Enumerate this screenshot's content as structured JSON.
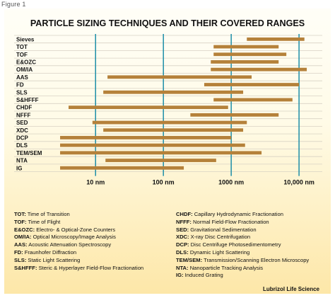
{
  "figure_label": "Figure 1",
  "source_note": "Lubrizol Life Science",
  "colors": {
    "bar": "#b5813a",
    "gridline": "#1c8ea8",
    "row_line": "#d8d2c4",
    "title": "#111111"
  },
  "chart_data": {
    "type": "bar",
    "orientation": "horizontal-range",
    "title": "PARTICLE SIZING TECHNIQUES AND THEIR COVERED RANGES",
    "x_scale": "log",
    "x_unit": "nm",
    "xlim": [
      1.9,
      20000
    ],
    "ticks": [
      {
        "value": 10,
        "label": "10 nm"
      },
      {
        "value": 100,
        "label": "100 nm"
      },
      {
        "value": 1000,
        "label": "1000 nm"
      },
      {
        "value": 10000,
        "label": "10,000 nm"
      }
    ],
    "grid": "vertical lines at ticks",
    "categories": [
      "Sieves",
      "TOT",
      "TOF",
      "E&OZC",
      "OM/IA",
      "AAS",
      "FD",
      "SLS",
      "S&HFFF",
      "CHDF",
      "NFFF",
      "SED",
      "XDC",
      "DCP",
      "DLS",
      "TEM/SEM",
      "NTA",
      "IG"
    ],
    "ranges": [
      [
        1700,
        12000
      ],
      [
        550,
        5000
      ],
      [
        550,
        6500
      ],
      [
        500,
        5000
      ],
      [
        500,
        13000
      ],
      [
        15,
        2000
      ],
      [
        400,
        10000
      ],
      [
        13,
        1500
      ],
      [
        550,
        8000
      ],
      [
        4,
        900
      ],
      [
        250,
        5000
      ],
      [
        9,
        1700
      ],
      [
        13,
        1500
      ],
      [
        3,
        1000
      ],
      [
        3,
        1600
      ],
      [
        3,
        2800
      ],
      [
        14,
        600
      ],
      [
        3,
        200
      ]
    ]
  },
  "legend": {
    "left": [
      {
        "abbr": "TOT:",
        "text": "Time of Transition"
      },
      {
        "abbr": "TOF:",
        "text": "Time of Flight"
      },
      {
        "abbr": "E&OZC:",
        "text": "Electro- & Optical-Zone Counters"
      },
      {
        "abbr": "OM/IA:",
        "text": "Optical Microscopy/Image Analysis"
      },
      {
        "abbr": "AAS:",
        "text": "Acoustic Attenuation Spectroscopy"
      },
      {
        "abbr": "FD:",
        "text": "Fraunhofer Diffraction"
      },
      {
        "abbr": "SLS:",
        "text": "Static Light Scattering"
      },
      {
        "abbr": "S&HFFF:",
        "text": "Steric & Hyperlayer Field-Flow Fractionation"
      }
    ],
    "right": [
      {
        "abbr": "CHDF:",
        "text": "Capillary Hydrodynamic Fractionation"
      },
      {
        "abbr": "NFFF:",
        "text": "Normal Field-Flow Fractionation"
      },
      {
        "abbr": "SED:",
        "text": "Gravitational Sedimentation"
      },
      {
        "abbr": "XDC:",
        "text": "X-ray Disc Centrifugation"
      },
      {
        "abbr": "DCP:",
        "text": "Disc Centrifuge Photosedimentometry"
      },
      {
        "abbr": "DLS:",
        "text": "Dynamic Light Scattering"
      },
      {
        "abbr": "TEM/SEM:",
        "text": "Transmission/Scanning Electron Microscopy"
      },
      {
        "abbr": "NTA:",
        "text": "Nanoparticle Tracking Analysis"
      },
      {
        "abbr": "IG:",
        "text": "Induced Grating"
      }
    ]
  }
}
